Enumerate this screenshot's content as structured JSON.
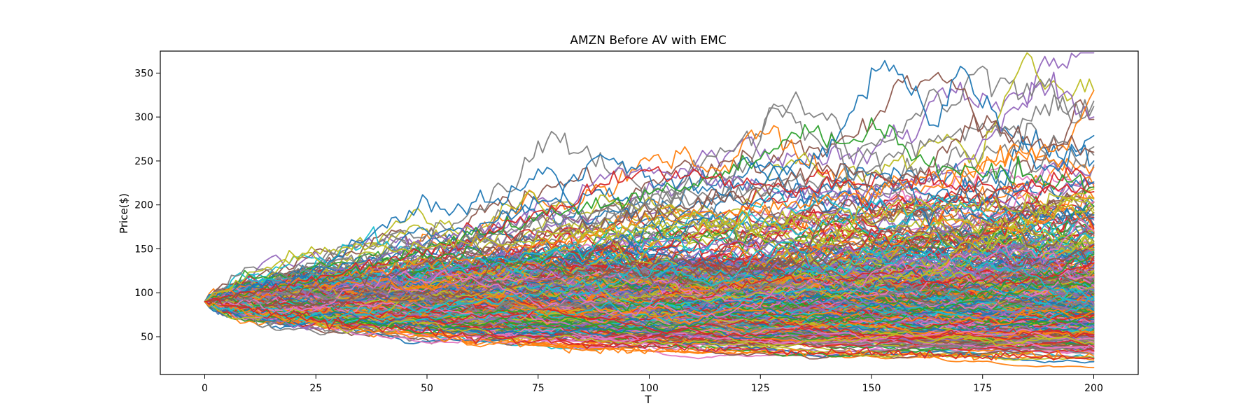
{
  "chart_data": {
    "type": "line",
    "title": "AMZN Before AV with EMC",
    "xlabel": "T",
    "ylabel": "Price($)",
    "xlim": [
      -10,
      210
    ],
    "ylim": [
      7,
      375
    ],
    "xticks": [
      0,
      25,
      50,
      75,
      100,
      125,
      150,
      175,
      200
    ],
    "yticks": [
      50,
      100,
      150,
      200,
      250,
      300,
      350
    ],
    "grid": false,
    "legend": "none",
    "start_value": 90,
    "steps": 200,
    "notable_series": [
      {
        "color": "#1f77b4",
        "anchors": [
          [
            0,
            90
          ],
          [
            20,
            115
          ],
          [
            40,
            140
          ],
          [
            60,
            170
          ],
          [
            70,
            195
          ],
          [
            80,
            210
          ],
          [
            88,
            255
          ],
          [
            100,
            230
          ],
          [
            120,
            220
          ],
          [
            140,
            260
          ],
          [
            150,
            340
          ],
          [
            154,
            358
          ],
          [
            160,
            330
          ],
          [
            164,
            295
          ],
          [
            170,
            350
          ],
          [
            180,
            285
          ],
          [
            190,
            260
          ],
          [
            200,
            250
          ]
        ]
      },
      {
        "color": "#9467bd",
        "anchors": [
          [
            0,
            90
          ],
          [
            15,
            105
          ],
          [
            30,
            125
          ],
          [
            60,
            175
          ],
          [
            80,
            190
          ],
          [
            88,
            230
          ],
          [
            100,
            240
          ],
          [
            120,
            225
          ],
          [
            150,
            210
          ],
          [
            170,
            245
          ],
          [
            188,
            337
          ],
          [
            200,
            300
          ]
        ]
      },
      {
        "color": "#ff7f0e",
        "anchors": [
          [
            0,
            90
          ],
          [
            30,
            120
          ],
          [
            60,
            140
          ],
          [
            100,
            180
          ],
          [
            140,
            205
          ],
          [
            170,
            240
          ],
          [
            180,
            255
          ],
          [
            195,
            270
          ],
          [
            200,
            330
          ]
        ]
      },
      {
        "color": "#7f7f7f",
        "anchors": [
          [
            0,
            90
          ],
          [
            10,
            132
          ],
          [
            20,
            120
          ],
          [
            50,
            155
          ],
          [
            100,
            200
          ],
          [
            145,
            230
          ],
          [
            165,
            280
          ],
          [
            180,
            285
          ],
          [
            190,
            310
          ],
          [
            200,
            312
          ]
        ]
      },
      {
        "color": "#2ca02c",
        "anchors": [
          [
            0,
            90
          ],
          [
            30,
            120
          ],
          [
            70,
            180
          ],
          [
            90,
            200
          ],
          [
            120,
            240
          ],
          [
            135,
            285
          ],
          [
            145,
            265
          ],
          [
            150,
            295
          ],
          [
            160,
            250
          ],
          [
            180,
            235
          ],
          [
            200,
            220
          ]
        ]
      },
      {
        "color": "#d62728",
        "anchors": [
          [
            0,
            90
          ],
          [
            20,
            110
          ],
          [
            60,
            160
          ],
          [
            100,
            242
          ],
          [
            110,
            230
          ],
          [
            130,
            220
          ],
          [
            160,
            230
          ],
          [
            180,
            220
          ],
          [
            200,
            215
          ]
        ]
      },
      {
        "color": "#8c564b",
        "anchors": [
          [
            0,
            90
          ],
          [
            40,
            120
          ],
          [
            80,
            170
          ],
          [
            120,
            210
          ],
          [
            140,
            240
          ],
          [
            160,
            230
          ],
          [
            175,
            300
          ],
          [
            185,
            270
          ],
          [
            200,
            260
          ]
        ]
      },
      {
        "color": "#bcbd22",
        "anchors": [
          [
            0,
            90
          ],
          [
            10,
            120
          ],
          [
            20,
            140
          ],
          [
            28,
            152
          ],
          [
            40,
            150
          ],
          [
            60,
            155
          ],
          [
            90,
            170
          ],
          [
            130,
            185
          ],
          [
            170,
            200
          ],
          [
            200,
            190
          ]
        ]
      },
      {
        "color": "#ff7f0e",
        "anchors": [
          [
            0,
            90
          ],
          [
            20,
            70
          ],
          [
            50,
            50
          ],
          [
            80,
            38
          ],
          [
            100,
            35
          ],
          [
            120,
            34
          ],
          [
            150,
            31
          ],
          [
            180,
            28
          ],
          [
            200,
            28
          ]
        ]
      },
      {
        "color": "#d62728",
        "anchors": [
          [
            0,
            90
          ],
          [
            25,
            68
          ],
          [
            60,
            48
          ],
          [
            90,
            40
          ],
          [
            130,
            33
          ],
          [
            160,
            30
          ],
          [
            185,
            26
          ],
          [
            200,
            25
          ]
        ]
      }
    ],
    "series_colors": [
      "#1f77b4",
      "#ff7f0e",
      "#2ca02c",
      "#d62728",
      "#9467bd",
      "#8c564b",
      "#e377c2",
      "#7f7f7f",
      "#bcbd22",
      "#17becf"
    ]
  }
}
